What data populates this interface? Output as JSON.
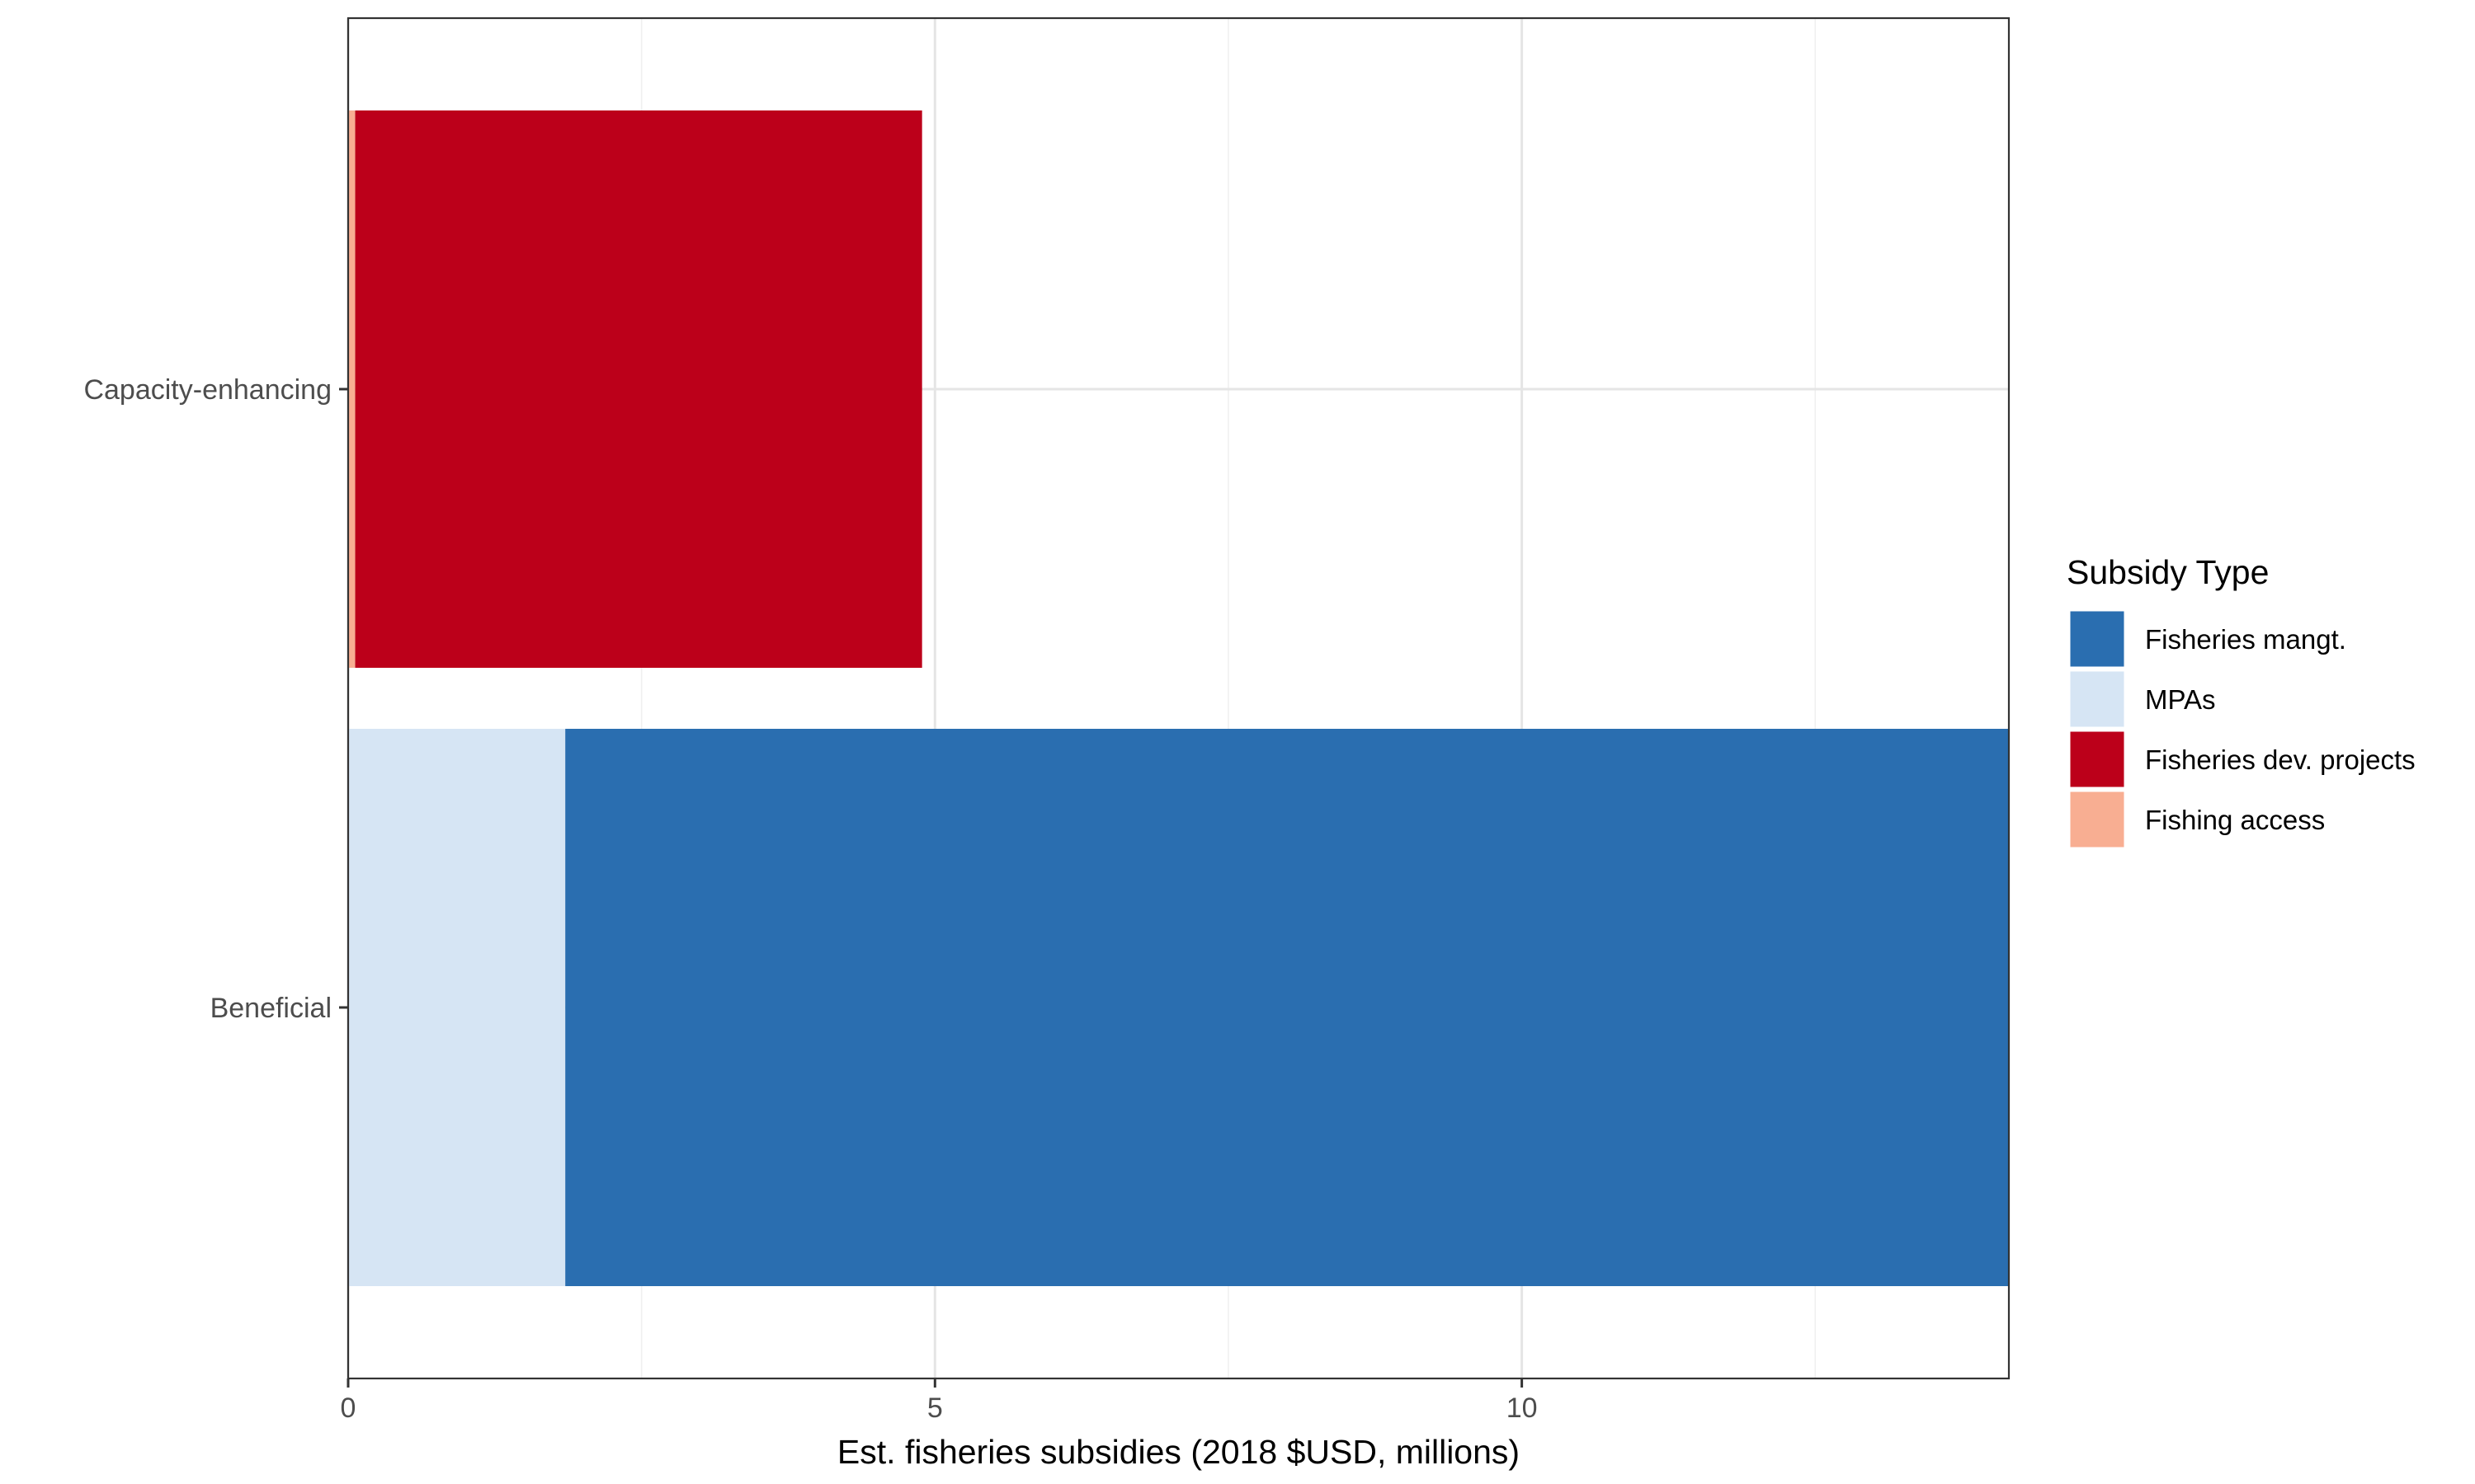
{
  "chart_data": {
    "type": "bar",
    "orientation": "horizontal",
    "stacked": true,
    "categories": [
      "Capacity-enhancing",
      "Beneficial"
    ],
    "series": [
      {
        "name": "Fisheries mangt.",
        "color": "#2a6eb0",
        "values": [
          0,
          12.3
        ]
      },
      {
        "name": "MPAs",
        "color": "#d6e5f4",
        "values": [
          0,
          1.85
        ]
      },
      {
        "name": "Fisheries dev. projects",
        "color": "#bc001a",
        "values": [
          4.83,
          0
        ]
      },
      {
        "name": "Fishing access",
        "color": "#f8ae92",
        "values": [
          0.06,
          0
        ]
      }
    ],
    "stack_order_from_zero": [
      "Fishing access",
      "MPAs",
      "Fisheries dev. projects",
      "Fisheries mangt."
    ],
    "xlabel": "Est. fisheries subsidies (2018 $USD, millions)",
    "ylabel": "",
    "xlim": [
      0,
      14.15
    ],
    "x_major_ticks": [
      0,
      5,
      10
    ],
    "x_minor_ticks": [
      2.5,
      7.5,
      12.5
    ],
    "grid": true,
    "legend": {
      "title": "Subsidy Type",
      "position": "right",
      "entries": [
        "Fisheries mangt.",
        "MPAs",
        "Fisheries dev. projects",
        "Fishing access"
      ]
    },
    "theme": "bw"
  }
}
